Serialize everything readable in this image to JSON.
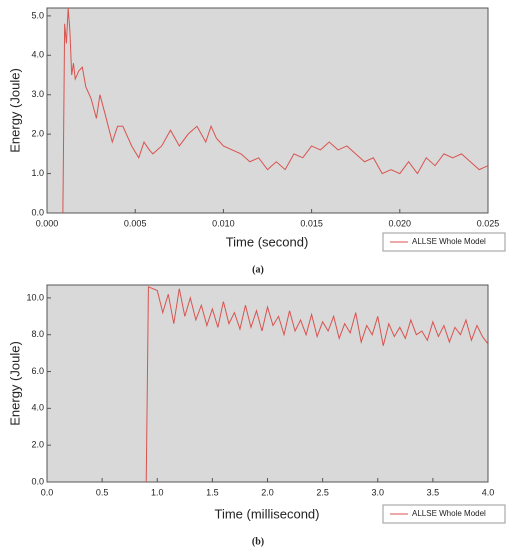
{
  "chart_data": [
    {
      "type": "line",
      "xlabel": "Time (second)",
      "ylabel": "Energy (Joule)",
      "caption": "(a)",
      "xlim": [
        0,
        0.025
      ],
      "ylim": [
        0,
        5.2
      ],
      "xticks": [
        {
          "value": 0,
          "label": "0.000"
        },
        0.005,
        {
          "value": 0.01,
          "label": "0.010"
        },
        0.015,
        {
          "value": 0.02,
          "label": "0.020"
        },
        0.025
      ],
      "yticks": [
        {
          "value": 0,
          "label": "0.0"
        },
        {
          "value": 1,
          "label": "1.0"
        },
        {
          "value": 2,
          "label": "2.0"
        },
        {
          "value": 3,
          "label": "3.0"
        },
        {
          "value": 4,
          "label": "4.0"
        },
        {
          "value": 5,
          "label": "5.0"
        }
      ],
      "x": [
        0.0009,
        0.001,
        0.0011,
        0.0012,
        0.0013,
        0.0014,
        0.0015,
        0.0016,
        0.0017,
        0.0018,
        0.002,
        0.0022,
        0.0025,
        0.0028,
        0.003,
        0.0033,
        0.0037,
        0.004,
        0.0043,
        0.0048,
        0.0052,
        0.0055,
        0.0058,
        0.006,
        0.0065,
        0.007,
        0.0075,
        0.008,
        0.0085,
        0.009,
        0.0093,
        0.0096,
        0.01,
        0.0105,
        0.011,
        0.0115,
        0.012,
        0.0125,
        0.013,
        0.0135,
        0.014,
        0.0145,
        0.015,
        0.0155,
        0.016,
        0.0165,
        0.017,
        0.0175,
        0.018,
        0.0185,
        0.019,
        0.0195,
        0.02,
        0.0205,
        0.021,
        0.0215,
        0.022,
        0.0225,
        0.023,
        0.0235,
        0.024,
        0.0245,
        0.025
      ],
      "series": [
        {
          "name": "ALLSE Whole Model",
          "color": "#d9534f",
          "values": [
            0,
            4.8,
            4.3,
            5.2,
            4.6,
            3.5,
            3.8,
            3.4,
            3.5,
            3.6,
            3.7,
            3.2,
            2.9,
            2.4,
            3.0,
            2.5,
            1.8,
            2.2,
            2.2,
            1.7,
            1.4,
            1.8,
            1.6,
            1.5,
            1.7,
            2.1,
            1.7,
            2.0,
            2.2,
            1.8,
            2.2,
            1.9,
            1.7,
            1.6,
            1.5,
            1.3,
            1.4,
            1.1,
            1.3,
            1.1,
            1.5,
            1.4,
            1.7,
            1.6,
            1.8,
            1.6,
            1.7,
            1.5,
            1.3,
            1.4,
            1.0,
            1.1,
            1.0,
            1.3,
            1.0,
            1.4,
            1.2,
            1.5,
            1.4,
            1.5,
            1.3,
            1.1,
            1.2
          ]
        }
      ]
    },
    {
      "type": "line",
      "xlabel": "Time (millisecond)",
      "ylabel": "Energy (Joule)",
      "caption": "(b)",
      "xlim": [
        0,
        4
      ],
      "ylim": [
        0,
        10.7
      ],
      "xticks": [
        {
          "value": 0,
          "label": "0.0"
        },
        0.5,
        {
          "value": 1,
          "label": "1.0"
        },
        1.5,
        {
          "value": 2,
          "label": "2.0"
        },
        2.5,
        {
          "value": 3,
          "label": "3.0"
        },
        3.5,
        {
          "value": 4,
          "label": "4.0"
        }
      ],
      "yticks": [
        {
          "value": 0,
          "label": "0.0"
        },
        {
          "value": 2,
          "label": "2.0"
        },
        {
          "value": 4,
          "label": "4.0"
        },
        {
          "value": 6,
          "label": "6.0"
        },
        {
          "value": 8,
          "label": "8.0"
        },
        {
          "value": 10,
          "label": "10.0"
        }
      ],
      "x": [
        0.9,
        0.92,
        1.0,
        1.05,
        1.1,
        1.15,
        1.2,
        1.25,
        1.3,
        1.35,
        1.4,
        1.45,
        1.5,
        1.55,
        1.6,
        1.65,
        1.7,
        1.75,
        1.8,
        1.85,
        1.9,
        1.95,
        2.0,
        2.05,
        2.1,
        2.15,
        2.2,
        2.25,
        2.3,
        2.35,
        2.4,
        2.45,
        2.5,
        2.55,
        2.6,
        2.65,
        2.7,
        2.75,
        2.8,
        2.85,
        2.9,
        2.95,
        3.0,
        3.05,
        3.1,
        3.15,
        3.2,
        3.25,
        3.3,
        3.35,
        3.4,
        3.45,
        3.5,
        3.55,
        3.6,
        3.65,
        3.7,
        3.75,
        3.8,
        3.85,
        3.9,
        3.95,
        4.0
      ],
      "series": [
        {
          "name": "ALLSE Whole Model",
          "color": "#d9534f",
          "values": [
            0,
            10.6,
            10.4,
            9.2,
            10.2,
            8.6,
            10.5,
            9.0,
            10.0,
            8.8,
            9.6,
            8.5,
            9.4,
            8.4,
            9.8,
            8.6,
            9.2,
            8.3,
            9.6,
            8.4,
            9.3,
            8.2,
            9.5,
            8.5,
            9.0,
            8.0,
            9.3,
            8.2,
            8.8,
            8.0,
            9.1,
            7.9,
            8.7,
            8.2,
            9.0,
            7.8,
            8.6,
            8.1,
            9.2,
            7.6,
            8.5,
            8.0,
            9.0,
            7.4,
            8.6,
            7.9,
            8.4,
            7.8,
            8.8,
            8.0,
            8.2,
            7.7,
            8.7,
            7.9,
            8.5,
            7.6,
            8.4,
            8.0,
            8.8,
            7.7,
            8.5,
            7.9,
            7.5
          ]
        }
      ]
    }
  ]
}
